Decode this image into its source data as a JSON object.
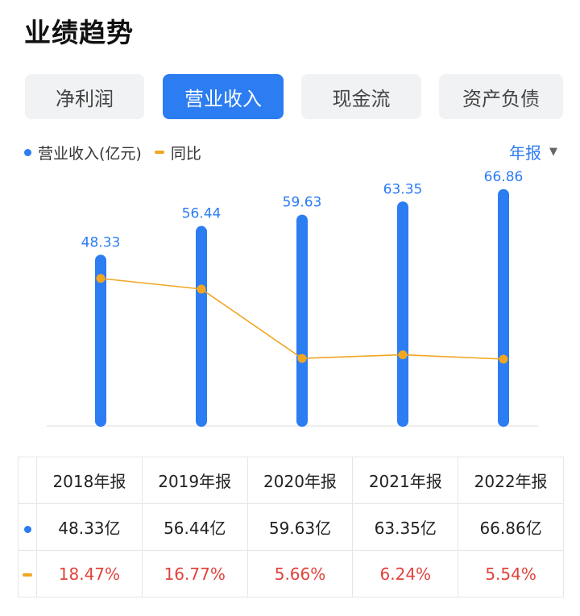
{
  "page": {
    "title": "业绩趋势"
  },
  "tabs": [
    {
      "label": "净利润",
      "active": false
    },
    {
      "label": "营业收入",
      "active": true
    },
    {
      "label": "现金流",
      "active": false
    },
    {
      "label": "资产负债",
      "active": false
    }
  ],
  "legend": {
    "bar_label": "营业收入(亿元)",
    "line_label": "同比"
  },
  "period_selector": {
    "label": "年报",
    "caret": "▼"
  },
  "colors": {
    "accent": "#2c7cf2",
    "line": "#f0a623",
    "negative_text": "#e0433c"
  },
  "chart_data": {
    "type": "bar",
    "categories": [
      "2018年报",
      "2019年报",
      "2020年报",
      "2021年报",
      "2022年报"
    ],
    "series": [
      {
        "name": "营业收入(亿元)",
        "type": "bar",
        "values": [
          48.33,
          56.44,
          59.63,
          63.35,
          66.86
        ]
      },
      {
        "name": "同比",
        "type": "line",
        "values": [
          18.47,
          16.77,
          5.66,
          6.24,
          5.54
        ]
      }
    ],
    "bar_labels": [
      "48.33",
      "56.44",
      "59.63",
      "63.35",
      "66.86"
    ]
  },
  "table": {
    "headers": [
      "2018年报",
      "2019年报",
      "2020年报",
      "2021年报",
      "2022年报"
    ],
    "revenue_row": [
      "48.33亿",
      "56.44亿",
      "59.63亿",
      "63.35亿",
      "66.86亿"
    ],
    "yoy_row": [
      "18.47%",
      "16.77%",
      "5.66%",
      "6.24%",
      "5.54%"
    ]
  }
}
